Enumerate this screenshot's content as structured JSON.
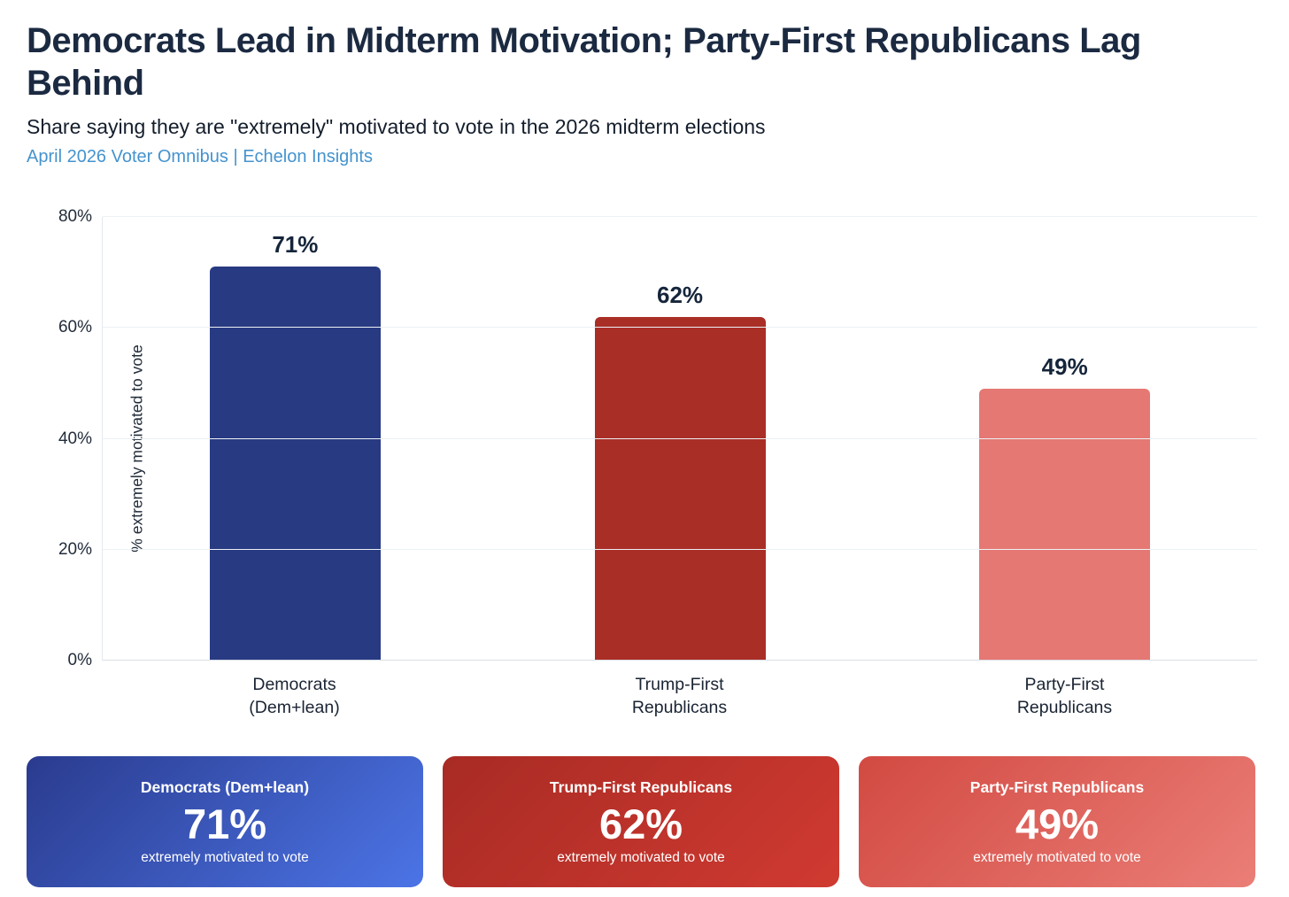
{
  "header": {
    "title": "Democrats Lead in Midterm Motivation; Party-First Republicans Lag Behind",
    "subtitle": "Share saying they are \"extremely\" motivated to vote in the 2026 midterm elections",
    "source": "April 2026 Voter Omnibus | Echelon Insights",
    "source_color": "#4593ce"
  },
  "chart_data": {
    "type": "bar",
    "title": "Democrats Lead in Midterm Motivation; Party-First Republicans Lag Behind",
    "subtitle": "Share saying they are \"extremely\" motivated to vote in the 2026 midterm elections",
    "categories": [
      "Democrats (Dem+lean)",
      "Trump-First Republicans",
      "Party-First Republicans"
    ],
    "cat_lines": [
      [
        "Democrats",
        "(Dem+lean)"
      ],
      [
        "Trump-First",
        "Republicans"
      ],
      [
        "Party-First",
        "Republicans"
      ]
    ],
    "values": [
      71,
      62,
      49
    ],
    "value_labels": [
      "71%",
      "62%",
      "49%"
    ],
    "bar_colors": [
      "#283a82",
      "#a92e26",
      "#e57873"
    ],
    "xlabel": "",
    "ylabel": "% extremely motivated to vote",
    "ylim": [
      0,
      80
    ],
    "ytick_values": [
      0,
      20,
      40,
      60,
      80
    ],
    "ytick_labels": [
      "0%",
      "20%",
      "40%",
      "60%",
      "80%"
    ],
    "grid": true,
    "legend": "none"
  },
  "cards": [
    {
      "title": "Democrats (Dem+lean)",
      "value": "71%",
      "caption": "extremely motivated to vote",
      "gradient_from": "#2a3b8e",
      "gradient_to": "#4c74e6"
    },
    {
      "title": "Trump-First Republicans",
      "value": "62%",
      "caption": "extremely motivated to vote",
      "gradient_from": "#a82b24",
      "gradient_to": "#d03a31"
    },
    {
      "title": "Party-First Republicans",
      "value": "49%",
      "caption": "extremely motivated to vote",
      "gradient_from": "#d24a42",
      "gradient_to": "#ea7e77"
    }
  ]
}
